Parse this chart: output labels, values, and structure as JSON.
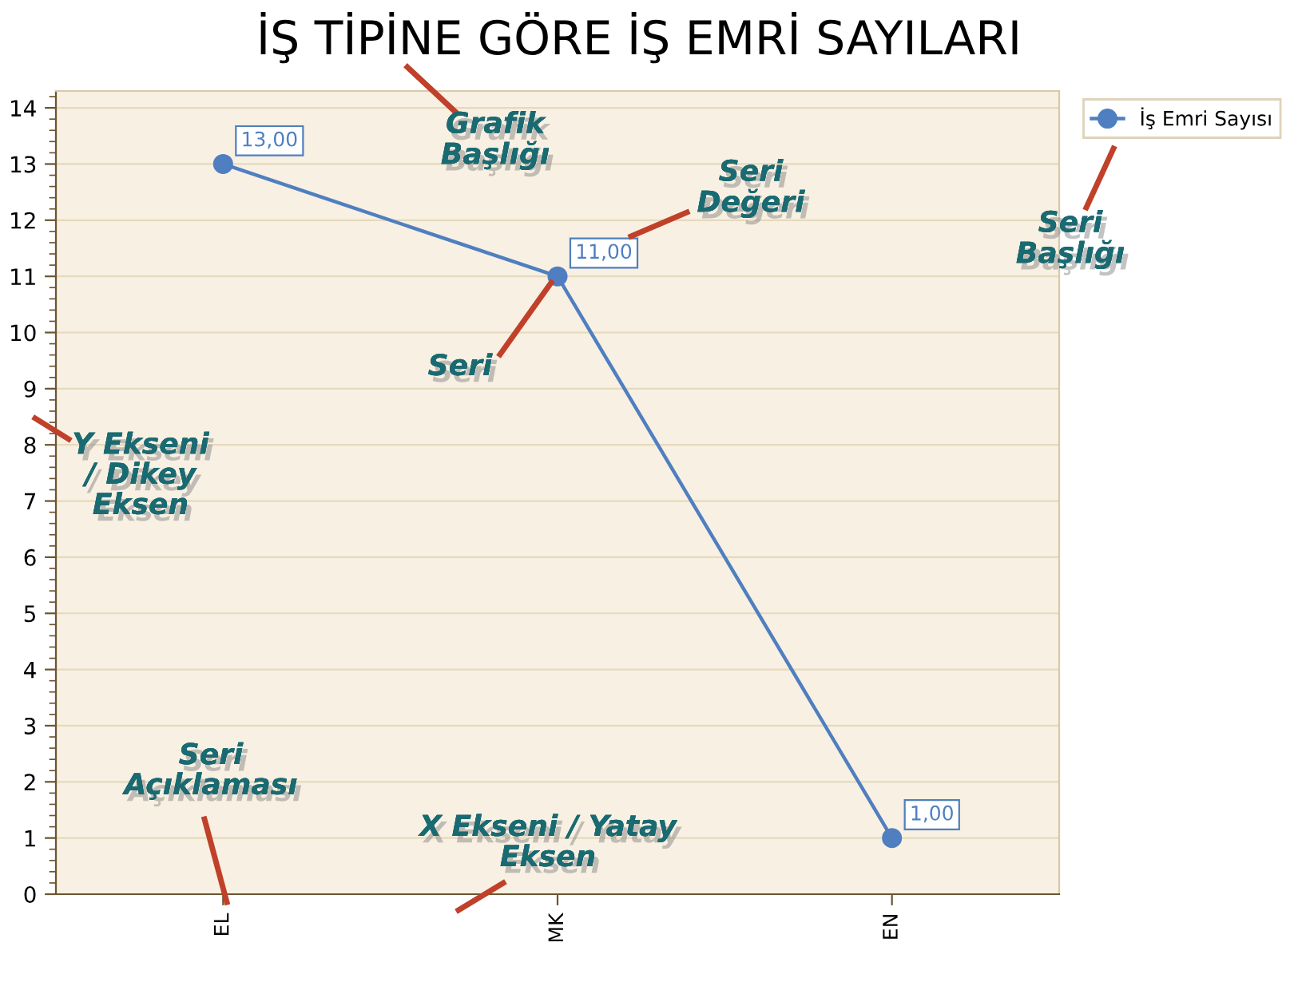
{
  "chart_data": {
    "type": "line",
    "title": "İŞ TİPİNE GÖRE İŞ EMRİ SAYILARI",
    "categories": [
      "EL",
      "MK",
      "EN"
    ],
    "series": [
      {
        "name": "İş Emri Sayısı",
        "color": "#4f7fc0",
        "values": [
          13,
          11,
          1
        ],
        "value_labels": [
          "13,00",
          "11,00",
          "1,00"
        ]
      }
    ],
    "ylim": [
      0,
      14.3
    ],
    "yticks": [
      0,
      1,
      2,
      3,
      4,
      5,
      6,
      7,
      8,
      9,
      10,
      11,
      12,
      13,
      14
    ],
    "grid": "y",
    "legend": "top right",
    "marker": "circle",
    "line_style": "solid",
    "annotations": [
      "Grafik\nBaşlığı",
      "Seri\nDeğeri",
      "Seri\nBaşlığı",
      {
        "text": "Seri",
        "x": "MK",
        "y": 11
      },
      "Y Ekseni\n/ Dikey\nEksen",
      "Seri\nAçıklaması",
      "X Ekseni / Yatay\nEksen"
    ]
  }
}
